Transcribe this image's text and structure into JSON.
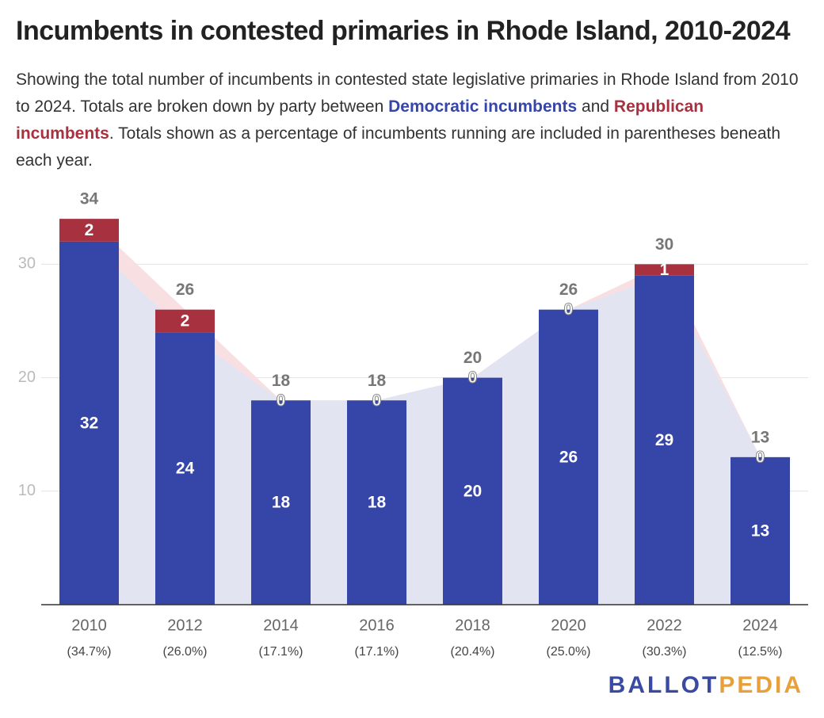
{
  "chart_data": {
    "type": "stacked_bar",
    "title": "Incumbents in contested primaries in Rhode Island, 2010-2024",
    "subtitle": {
      "part1": "Showing the total number of incumbents in contested state legislative primaries in Rhode Island from 2010 to 2024. Totals are broken down by party between",
      "part2": "and",
      "part3": ". Totals shown as a percentage of incumbents running are included in parentheses beneath each year."
    },
    "categories": [
      "2010",
      "2012",
      "2014",
      "2016",
      "2018",
      "2020",
      "2022",
      "2024"
    ],
    "category_notes": [
      "(34.7%)",
      "(26.0%)",
      "(17.1%)",
      "(17.1%)",
      "(20.4%)",
      "(25.0%)",
      "(30.3%)",
      "(12.5%)"
    ],
    "series": [
      {
        "name": "Democratic incumbents",
        "color": "#3546a8",
        "area_color": "#e2e4f2",
        "values": [
          32,
          24,
          18,
          18,
          20,
          26,
          29,
          13
        ]
      },
      {
        "name": "Republican incumbents",
        "color": "#a8313f",
        "area_color": "#f8e0e2",
        "values": [
          2,
          2,
          0,
          0,
          0,
          0,
          1,
          0
        ]
      }
    ],
    "totals": [
      34,
      26,
      18,
      18,
      20,
      26,
      30,
      13
    ],
    "ylim": [
      0,
      35
    ],
    "yticks": [
      10,
      20,
      30
    ],
    "grid": true
  },
  "branding": {
    "part1": "BALLOT",
    "part2": "PEDIA"
  }
}
